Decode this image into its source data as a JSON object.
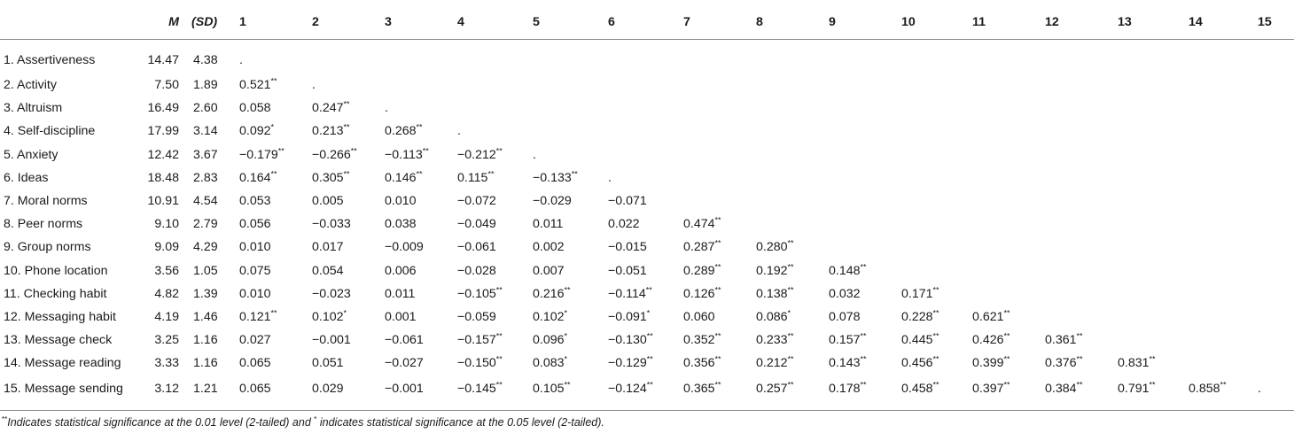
{
  "table": {
    "headers": [
      "",
      "M",
      "(SD)",
      "1",
      "2",
      "3",
      "4",
      "5",
      "6",
      "7",
      "8",
      "9",
      "10",
      "11",
      "12",
      "13",
      "14",
      "15"
    ],
    "rows": [
      {
        "name": "1. Assertiveness",
        "m": "14.47",
        "sd": "4.38",
        "cells": [
          "."
        ]
      },
      {
        "name": "2. Activity",
        "m": "7.50",
        "sd": "1.89",
        "cells": [
          "0.521**",
          "."
        ]
      },
      {
        "name": "3. Altruism",
        "m": "16.49",
        "sd": "2.60",
        "cells": [
          "0.058",
          "0.247**",
          "."
        ]
      },
      {
        "name": "4. Self-discipline",
        "m": "17.99",
        "sd": "3.14",
        "cells": [
          "0.092*",
          "0.213**",
          "0.268**",
          "."
        ]
      },
      {
        "name": "5. Anxiety",
        "m": "12.42",
        "sd": "3.67",
        "cells": [
          "−0.179**",
          "−0.266**",
          "−0.113**",
          "−0.212**",
          "."
        ]
      },
      {
        "name": "6. Ideas",
        "m": "18.48",
        "sd": "2.83",
        "cells": [
          "0.164**",
          "0.305**",
          "0.146**",
          "0.115**",
          "−0.133**",
          "."
        ]
      },
      {
        "name": "7. Moral norms",
        "m": "10.91",
        "sd": "4.54",
        "cells": [
          "0.053",
          "0.005",
          "0.010",
          "−0.072",
          "−0.029",
          "−0.071"
        ]
      },
      {
        "name": "8. Peer norms",
        "m": "9.10",
        "sd": "2.79",
        "cells": [
          "0.056",
          "−0.033",
          "0.038",
          "−0.049",
          "0.011",
          "0.022",
          "0.474**"
        ]
      },
      {
        "name": "9. Group norms",
        "m": "9.09",
        "sd": "4.29",
        "cells": [
          "0.010",
          "0.017",
          "−0.009",
          "−0.061",
          "0.002",
          "−0.015",
          "0.287**",
          "0.280**"
        ]
      },
      {
        "name": "10. Phone location",
        "m": "3.56",
        "sd": "1.05",
        "cells": [
          "0.075",
          "0.054",
          "0.006",
          "−0.028",
          "0.007",
          "−0.051",
          "0.289**",
          "0.192**",
          "0.148**"
        ]
      },
      {
        "name": "11. Checking habit",
        "m": "4.82",
        "sd": "1.39",
        "cells": [
          "0.010",
          "−0.023",
          "0.011",
          "−0.105**",
          "0.216**",
          "−0.114**",
          "0.126**",
          "0.138**",
          "0.032",
          "0.171**"
        ]
      },
      {
        "name": "12. Messaging habit",
        "m": "4.19",
        "sd": "1.46",
        "cells": [
          "0.121**",
          "0.102*",
          "0.001",
          "−0.059",
          "0.102*",
          "−0.091*",
          "0.060",
          "0.086*",
          "0.078",
          "0.228**",
          "0.621**"
        ]
      },
      {
        "name": "13. Message check",
        "m": "3.25",
        "sd": "1.16",
        "cells": [
          "0.027",
          "−0.001",
          "−0.061",
          "−0.157**",
          "0.096*",
          "−0.130**",
          "0.352**",
          "0.233**",
          "0.157**",
          "0.445**",
          "0.426**",
          "0.361**"
        ]
      },
      {
        "name": "14. Message reading",
        "m": "3.33",
        "sd": "1.16",
        "cells": [
          "0.065",
          "0.051",
          "−0.027",
          "−0.150**",
          "0.083*",
          "−0.129**",
          "0.356**",
          "0.212**",
          "0.143**",
          "0.456**",
          "0.399**",
          "0.376**",
          "0.831**"
        ]
      },
      {
        "name": "15. Message sending",
        "m": "3.12",
        "sd": "1.21",
        "cells": [
          "0.065",
          "0.029",
          "−0.001",
          "−0.145**",
          "0.105**",
          "−0.124**",
          "0.365**",
          "0.257**",
          "0.178**",
          "0.458**",
          "0.397**",
          "0.384**",
          "0.791**",
          "0.858**",
          "."
        ]
      }
    ]
  },
  "note": {
    "mark1": "**",
    "text1": "Indicates statistical significance at the 0.01 level (2-tailed) and ",
    "mark2": "*",
    "text2": " indicates statistical significance at the 0.05 level (2-tailed)."
  }
}
